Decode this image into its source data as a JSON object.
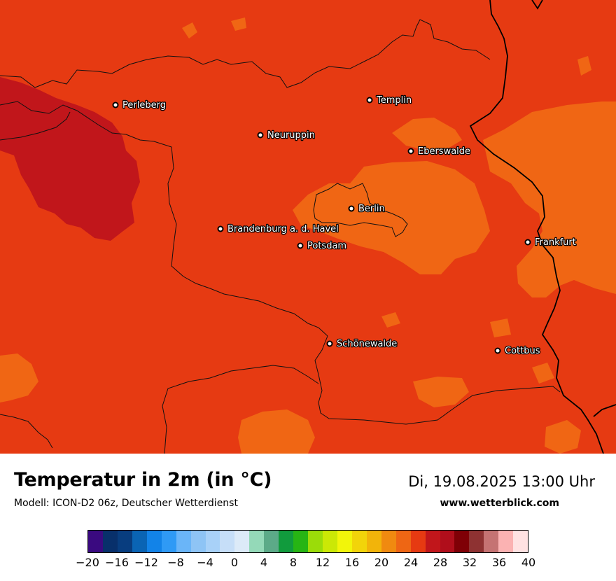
{
  "map": {
    "cities": [
      {
        "name": "Perleberg"
      },
      {
        "name": "Templin"
      },
      {
        "name": "Neuruppin"
      },
      {
        "name": "Eberswalde"
      },
      {
        "name": "Berlin"
      },
      {
        "name": "Brandenburg a. d. Havel"
      },
      {
        "name": "Potsdam"
      },
      {
        "name": "Frankfurt"
      },
      {
        "name": "Schönewalde"
      },
      {
        "name": "Cottbus"
      }
    ],
    "colors": {
      "base": "#e63a12",
      "warmer": "#c1161b",
      "cooler": "#f06614",
      "border": "#111111"
    }
  },
  "header": {
    "title": "Temperatur in 2m (in °C)",
    "subtitle": "Modell: ICON-D2 06z, Deutscher Wetterdienst",
    "datetime": "Di, 19.08.2025 13:00 Uhr",
    "website": "www.wetterblick.com"
  },
  "legend": {
    "colors": [
      "#3a0a80",
      "#08306b",
      "#083d7f",
      "#0a64b4",
      "#1283e8",
      "#2f9af5",
      "#6ab5f8",
      "#8ec4f5",
      "#a8d1f8",
      "#c6def8",
      "#dceaf8",
      "#94d9b8",
      "#5caa88",
      "#119b3d",
      "#27b514",
      "#9bdc09",
      "#cbe806",
      "#f2f50a",
      "#f2d40a",
      "#f2b40a",
      "#f08a10",
      "#ee6614",
      "#e63a12",
      "#c1161b",
      "#b00e1b",
      "#7f0006",
      "#8e3232",
      "#c57373",
      "#fbb2b2",
      "#ffe2e2"
    ],
    "ticks": [
      "−20",
      "−16",
      "−12",
      "−8",
      "−4",
      "0",
      "4",
      "8",
      "12",
      "16",
      "20",
      "24",
      "28",
      "32",
      "36",
      "40"
    ]
  }
}
